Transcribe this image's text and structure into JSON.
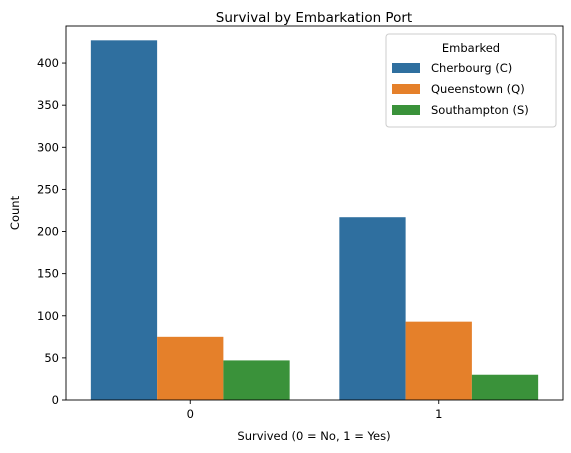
{
  "chart_data": {
    "type": "bar",
    "title": "Survival by Embarkation Port",
    "xlabel": "Survived (0 = No, 1 = Yes)",
    "ylabel": "Count",
    "categories": [
      "0",
      "1"
    ],
    "series": [
      {
        "name": "Cherbourg (C)",
        "color": "#2f6f9f",
        "values": [
          427,
          217
        ]
      },
      {
        "name": "Queenstown (Q)",
        "color": "#e5802a",
        "values": [
          75,
          93
        ]
      },
      {
        "name": "Southampton (S)",
        "color": "#3a923a",
        "values": [
          47,
          30
        ]
      }
    ],
    "ylim": [
      0,
      444
    ],
    "yticks": [
      0,
      50,
      100,
      150,
      200,
      250,
      300,
      350,
      400
    ],
    "grid": false,
    "legend": {
      "title": "Embarked",
      "placement": "top-right"
    }
  }
}
